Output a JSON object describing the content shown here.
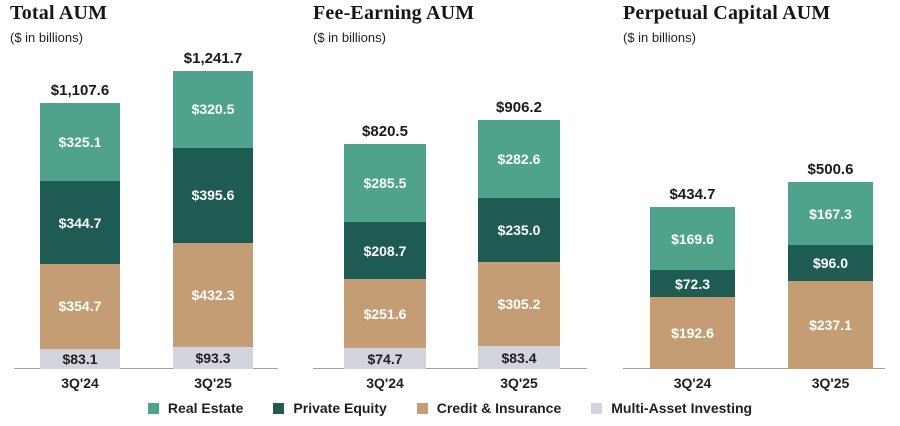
{
  "page": {
    "background": "#ffffff",
    "text_color": "#1f1f1f",
    "axis_color": "#a3a3a3"
  },
  "chart_data": [
    {
      "type": "bar",
      "stacked": true,
      "title": "Total AUM",
      "subtitle": "($ in billions)",
      "categories": [
        "3Q'24",
        "3Q'25"
      ],
      "series": [
        {
          "name": "Real Estate",
          "color": "#4fa28b",
          "label_color": "#ffffff",
          "values": [
            325.1,
            320.5
          ],
          "labels": [
            "$325.1",
            "$320.5"
          ]
        },
        {
          "name": "Private Equity",
          "color": "#1e5b52",
          "label_color": "#ffffff",
          "values": [
            344.7,
            395.6
          ],
          "labels": [
            "$344.7",
            "$395.6"
          ]
        },
        {
          "name": "Credit & Insurance",
          "color": "#c49d74",
          "label_color": "#ffffff",
          "values": [
            354.7,
            432.3
          ],
          "labels": [
            "$354.7",
            "$432.3"
          ]
        },
        {
          "name": "Multi-Asset Investing",
          "color": "#d2d4de",
          "label_color": "#1f1f1f",
          "values": [
            83.1,
            93.3
          ],
          "labels": [
            "$83.1",
            "$93.3"
          ]
        }
      ],
      "totals": [
        1107.6,
        1241.7
      ],
      "total_labels": [
        "$1,107.6",
        "$1,241.7"
      ],
      "grid": false,
      "legend_position": "bottom"
    },
    {
      "type": "bar",
      "stacked": true,
      "title": "Fee-Earning AUM",
      "subtitle": "($ in billions)",
      "categories": [
        "3Q'24",
        "3Q'25"
      ],
      "series": [
        {
          "name": "Real Estate",
          "color": "#4fa28b",
          "label_color": "#ffffff",
          "values": [
            285.5,
            282.6
          ],
          "labels": [
            "$285.5",
            "$282.6"
          ]
        },
        {
          "name": "Private Equity",
          "color": "#1e5b52",
          "label_color": "#ffffff",
          "values": [
            208.7,
            235.0
          ],
          "labels": [
            "$208.7",
            "$235.0"
          ]
        },
        {
          "name": "Credit & Insurance",
          "color": "#c49d74",
          "label_color": "#ffffff",
          "values": [
            251.6,
            305.2
          ],
          "labels": [
            "$251.6",
            "$305.2"
          ]
        },
        {
          "name": "Multi-Asset Investing",
          "color": "#d2d4de",
          "label_color": "#1f1f1f",
          "values": [
            74.7,
            83.4
          ],
          "labels": [
            "$74.7",
            "$83.4"
          ]
        }
      ],
      "totals": [
        820.5,
        906.2
      ],
      "total_labels": [
        "$820.5",
        "$906.2"
      ],
      "grid": false,
      "legend_position": "bottom"
    },
    {
      "type": "bar",
      "stacked": true,
      "title": "Perpetual Capital AUM",
      "subtitle": "($ in billions)",
      "categories": [
        "3Q'24",
        "3Q'25"
      ],
      "series": [
        {
          "name": "Real Estate",
          "color": "#4fa28b",
          "label_color": "#ffffff",
          "values": [
            169.6,
            167.3
          ],
          "labels": [
            "$169.6",
            "$167.3"
          ]
        },
        {
          "name": "Private Equity",
          "color": "#1e5b52",
          "label_color": "#ffffff",
          "values": [
            72.3,
            96.0
          ],
          "labels": [
            "$72.3",
            "$96.0"
          ]
        },
        {
          "name": "Credit & Insurance",
          "color": "#c49d74",
          "label_color": "#ffffff",
          "values": [
            192.6,
            237.1
          ],
          "labels": [
            "$192.6",
            "$237.1"
          ]
        }
      ],
      "totals": [
        434.7,
        500.6
      ],
      "total_labels": [
        "$434.7",
        "$500.6"
      ],
      "grid": false,
      "legend_position": "bottom"
    }
  ],
  "legend": {
    "items": [
      {
        "label": "Real Estate",
        "color": "#4fa28b"
      },
      {
        "label": "Private Equity",
        "color": "#1e5b52"
      },
      {
        "label": "Credit & Insurance",
        "color": "#c49d74"
      },
      {
        "label": "Multi-Asset Investing",
        "color": "#d2d4de"
      }
    ]
  }
}
